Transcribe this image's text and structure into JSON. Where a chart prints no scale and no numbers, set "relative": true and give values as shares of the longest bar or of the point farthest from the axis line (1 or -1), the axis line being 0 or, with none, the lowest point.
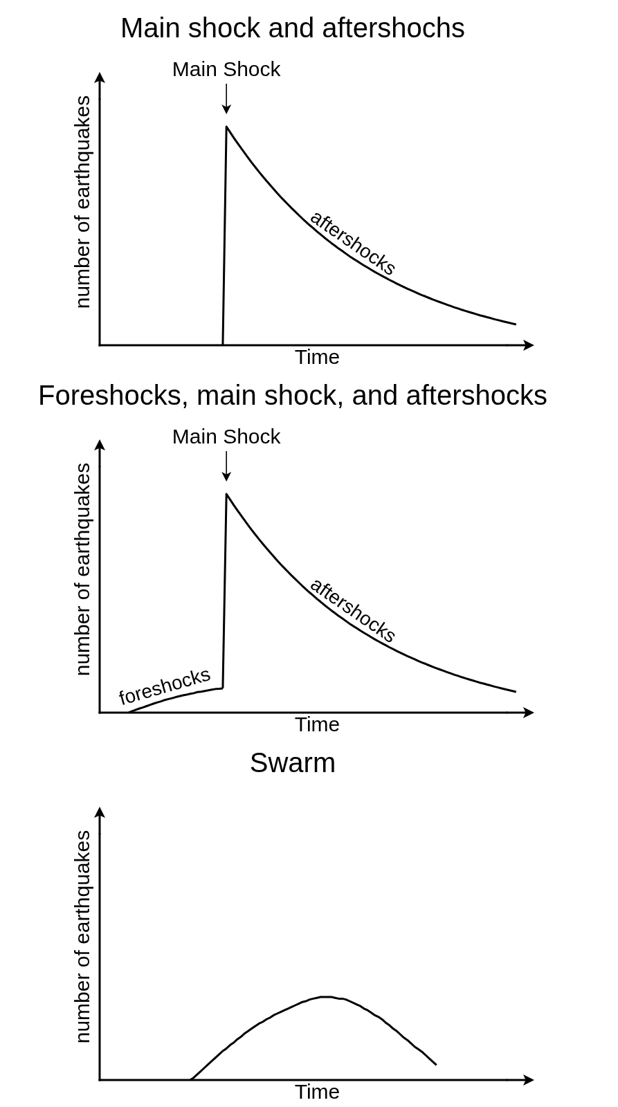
{
  "chart_data": [
    {
      "type": "line",
      "title": "Main shock and aftershochs",
      "xlabel": "Time",
      "ylabel": "number of earthquakes",
      "relative": true,
      "categories": [
        null,
        null,
        null,
        null,
        null,
        null,
        null,
        null,
        null,
        null,
        null,
        null,
        null,
        null,
        null,
        null,
        null,
        null,
        null,
        null,
        null,
        null,
        null,
        null,
        null,
        null,
        null,
        null,
        null,
        null,
        null,
        null,
        null,
        null,
        null,
        null,
        null,
        null,
        null,
        null,
        null,
        null,
        null,
        null,
        null,
        null,
        null,
        null,
        null,
        null,
        null,
        null,
        null,
        null,
        null,
        null,
        null,
        null,
        null,
        null,
        null,
        null,
        null,
        null,
        null,
        null,
        null,
        null,
        null,
        null,
        null,
        null,
        null,
        null,
        null,
        null,
        null,
        null,
        null,
        null,
        null,
        null,
        null,
        null,
        null,
        null,
        null,
        null,
        null,
        null,
        null,
        null,
        null,
        null,
        null,
        null,
        null,
        null,
        null,
        null,
        null,
        null,
        null,
        null,
        null,
        null,
        null,
        null,
        null,
        null,
        null,
        null,
        null,
        null,
        null,
        null,
        null,
        null,
        null,
        null,
        null
      ],
      "series": [
        {
          "name": "aftershocks",
          "color": "#000000",
          "values": [
            null,
            null,
            null,
            null,
            null,
            null,
            null,
            null,
            null,
            null,
            null,
            null,
            null,
            null,
            null,
            null,
            null,
            null,
            null,
            null,
            null,
            null,
            null,
            null,
            null,
            null,
            null,
            null,
            null,
            null,
            null,
            null,
            null,
            null,
            0,
            1.0,
            0.975,
            0.95,
            0.926,
            0.903,
            0.88,
            0.857,
            0.835,
            0.814,
            0.793,
            0.773,
            0.753,
            0.734,
            0.715,
            0.696,
            0.678,
            0.661,
            0.644,
            0.627,
            0.611,
            0.595,
            0.579,
            0.564,
            0.549,
            0.535,
            0.52,
            0.507,
            0.493,
            0.48,
            0.467,
            0.455,
            0.442,
            0.431,
            0.419,
            0.407,
            0.396,
            0.386,
            0.375,
            0.365,
            0.355,
            0.345,
            0.335,
            0.326,
            0.317,
            0.308,
            0.299,
            0.291,
            0.282,
            0.274,
            0.266,
            0.258,
            0.251,
            0.244,
            0.236,
            0.229,
            0.223,
            0.216,
            0.209,
            0.203,
            0.197,
            0.191,
            0.185,
            0.179,
            0.173,
            0.168,
            0.162,
            0.157,
            0.152,
            0.147,
            0.142,
            0.137,
            0.133,
            0.128,
            0.124,
            0.119,
            0.115,
            0.111,
            0.107,
            0.103,
            0.099,
            0.095,
            null,
            null,
            null,
            null,
            null
          ]
        }
      ],
      "annotations": [
        {
          "text": "Main Shock",
          "y": 1
        }
      ]
    },
    {
      "type": "line",
      "title": "Foreshocks, main shock, and aftershocks",
      "xlabel": "Time",
      "ylabel": "number of earthquakes",
      "relative": true,
      "categories": [
        null,
        null,
        null,
        null,
        null,
        null,
        null,
        null,
        null,
        null,
        null,
        null,
        null,
        null,
        null,
        null,
        null,
        null,
        null,
        null,
        null,
        null,
        null,
        null,
        null,
        null,
        null,
        null,
        null,
        null,
        null,
        null,
        null,
        null,
        null,
        null,
        null,
        null,
        null,
        null,
        null,
        null,
        null,
        null,
        null,
        null,
        null,
        null,
        null,
        null,
        null,
        null,
        null,
        null,
        null,
        null,
        null,
        null,
        null,
        null,
        null,
        null,
        null,
        null,
        null,
        null,
        null,
        null,
        null,
        null,
        null,
        null,
        null,
        null,
        null,
        null,
        null,
        null,
        null,
        null,
        null,
        null,
        null,
        null,
        null,
        null,
        null,
        null,
        null,
        null,
        null,
        null,
        null,
        null,
        null,
        null,
        null,
        null,
        null,
        null,
        null,
        null,
        null,
        null,
        null,
        null,
        null,
        null,
        null,
        null,
        null,
        null,
        null,
        null,
        null,
        null,
        null,
        null,
        null,
        null,
        null
      ],
      "series": [
        {
          "name": "foreshocks",
          "color": "#000000",
          "values": [
            null,
            null,
            null,
            null,
            null,
            null,
            null,
            null,
            0,
            0.007,
            0.013,
            0.019,
            0.024,
            0.03,
            0.036,
            0.042,
            0.047,
            0.052,
            0.058,
            0.062,
            0.066,
            0.071,
            0.075,
            0.079,
            0.082,
            0.086,
            0.089,
            0.094,
            0.096,
            0.099,
            0.102,
            0.105,
            0.108,
            0.109,
            0.111,
            null,
            null,
            null,
            null,
            null,
            null,
            null,
            null,
            null,
            null,
            null,
            null,
            null,
            null,
            null,
            null,
            null,
            null,
            null,
            null,
            null,
            null,
            null,
            null,
            null,
            null,
            null,
            null,
            null,
            null,
            null,
            null,
            null,
            null,
            null,
            null,
            null,
            null,
            null,
            null,
            null,
            null,
            null,
            null,
            null,
            null,
            null,
            null,
            null,
            null,
            null,
            null,
            null,
            null,
            null,
            null,
            null,
            null,
            null,
            null,
            null,
            null,
            null,
            null,
            null,
            null,
            null,
            null,
            null,
            null,
            null,
            null,
            null,
            null,
            null,
            null,
            null,
            null,
            null,
            null,
            null,
            null,
            null,
            null,
            null,
            null
          ]
        },
        {
          "name": "aftershocks",
          "color": "#000000",
          "values": [
            null,
            null,
            null,
            null,
            null,
            null,
            null,
            null,
            null,
            null,
            null,
            null,
            null,
            null,
            null,
            null,
            null,
            null,
            null,
            null,
            null,
            null,
            null,
            null,
            null,
            null,
            null,
            null,
            null,
            null,
            null,
            null,
            null,
            null,
            0.111,
            1.0,
            0.975,
            0.95,
            0.926,
            0.903,
            0.88,
            0.857,
            0.835,
            0.814,
            0.793,
            0.773,
            0.753,
            0.734,
            0.715,
            0.696,
            0.678,
            0.661,
            0.644,
            0.627,
            0.611,
            0.595,
            0.579,
            0.564,
            0.549,
            0.535,
            0.52,
            0.507,
            0.493,
            0.48,
            0.467,
            0.455,
            0.442,
            0.431,
            0.419,
            0.407,
            0.396,
            0.386,
            0.375,
            0.365,
            0.355,
            0.345,
            0.335,
            0.326,
            0.317,
            0.308,
            0.299,
            0.291,
            0.282,
            0.274,
            0.266,
            0.258,
            0.251,
            0.244,
            0.236,
            0.229,
            0.223,
            0.216,
            0.209,
            0.203,
            0.197,
            0.191,
            0.185,
            0.179,
            0.173,
            0.168,
            0.162,
            0.157,
            0.152,
            0.147,
            0.142,
            0.137,
            0.133,
            0.128,
            0.124,
            0.119,
            0.115,
            0.111,
            0.107,
            0.103,
            0.099,
            0.095,
            null,
            null,
            null,
            null,
            null
          ]
        }
      ],
      "annotations": [
        {
          "text": "Main Shock",
          "y": 1
        }
      ]
    },
    {
      "type": "line",
      "title": "Swarm",
      "xlabel": "Time",
      "ylabel": "number of earthquakes",
      "relative": true,
      "categories": [
        null,
        null,
        null,
        null,
        null,
        null,
        null,
        null,
        null,
        null,
        null,
        null,
        null,
        null,
        null,
        null,
        null,
        null,
        null,
        null,
        null,
        null,
        null,
        null,
        null,
        null,
        null,
        null,
        null,
        null,
        null,
        null,
        null,
        null,
        null,
        null,
        null,
        null,
        null,
        null,
        null,
        null,
        null,
        null,
        null,
        null,
        null,
        null,
        null,
        null,
        null,
        null,
        null,
        null,
        null,
        null,
        null,
        null,
        null,
        null,
        null,
        null,
        null,
        null,
        null,
        null,
        null,
        null,
        null,
        null,
        null,
        null,
        null,
        null,
        null,
        null,
        null,
        null,
        null,
        null,
        null,
        null,
        null,
        null,
        null,
        null,
        null,
        null,
        null,
        null,
        null,
        null,
        null,
        null,
        null,
        null,
        null,
        null,
        null,
        null,
        null,
        null,
        null,
        null,
        null,
        null,
        null,
        null,
        null,
        null,
        null,
        null,
        null,
        null,
        null,
        null,
        null,
        null,
        null,
        null,
        null
      ],
      "series": [
        {
          "color": "#000000",
          "values": [
            null,
            null,
            null,
            null,
            null,
            null,
            null,
            null,
            null,
            null,
            null,
            null,
            null,
            null,
            null,
            null,
            null,
            null,
            null,
            null,
            null,
            null,
            null,
            null,
            null,
            0,
            0.03,
            0.07,
            0.11,
            0.15,
            0.19,
            0.23,
            0.27,
            0.31,
            0.35,
            0.38,
            0.42,
            0.45,
            0.49,
            0.52,
            0.56,
            0.59,
            0.62,
            0.65,
            0.68,
            0.7,
            0.73,
            0.75,
            0.78,
            0.8,
            0.82,
            0.84,
            0.86,
            0.88,
            0.9,
            0.92,
            0.94,
            0.95,
            0.97,
            0.98,
            0.99,
            1,
            1,
            1,
            1,
            0.99,
            0.98,
            0.98,
            0.97,
            0.95,
            0.93,
            0.91,
            0.89,
            0.86,
            0.84,
            0.81,
            0.78,
            0.76,
            0.73,
            0.69,
            0.66,
            0.62,
            0.59,
            0.55,
            0.51,
            0.48,
            0.44,
            0.4,
            0.37,
            0.34,
            0.3,
            0.26,
            0.22,
            0.18,
            null,
            null,
            null,
            null,
            null,
            null,
            null,
            null,
            null,
            null,
            null,
            null,
            null,
            null,
            null,
            null,
            null,
            null,
            null,
            null,
            null,
            null,
            null,
            null,
            null,
            null,
            null
          ]
        }
      ]
    }
  ]
}
